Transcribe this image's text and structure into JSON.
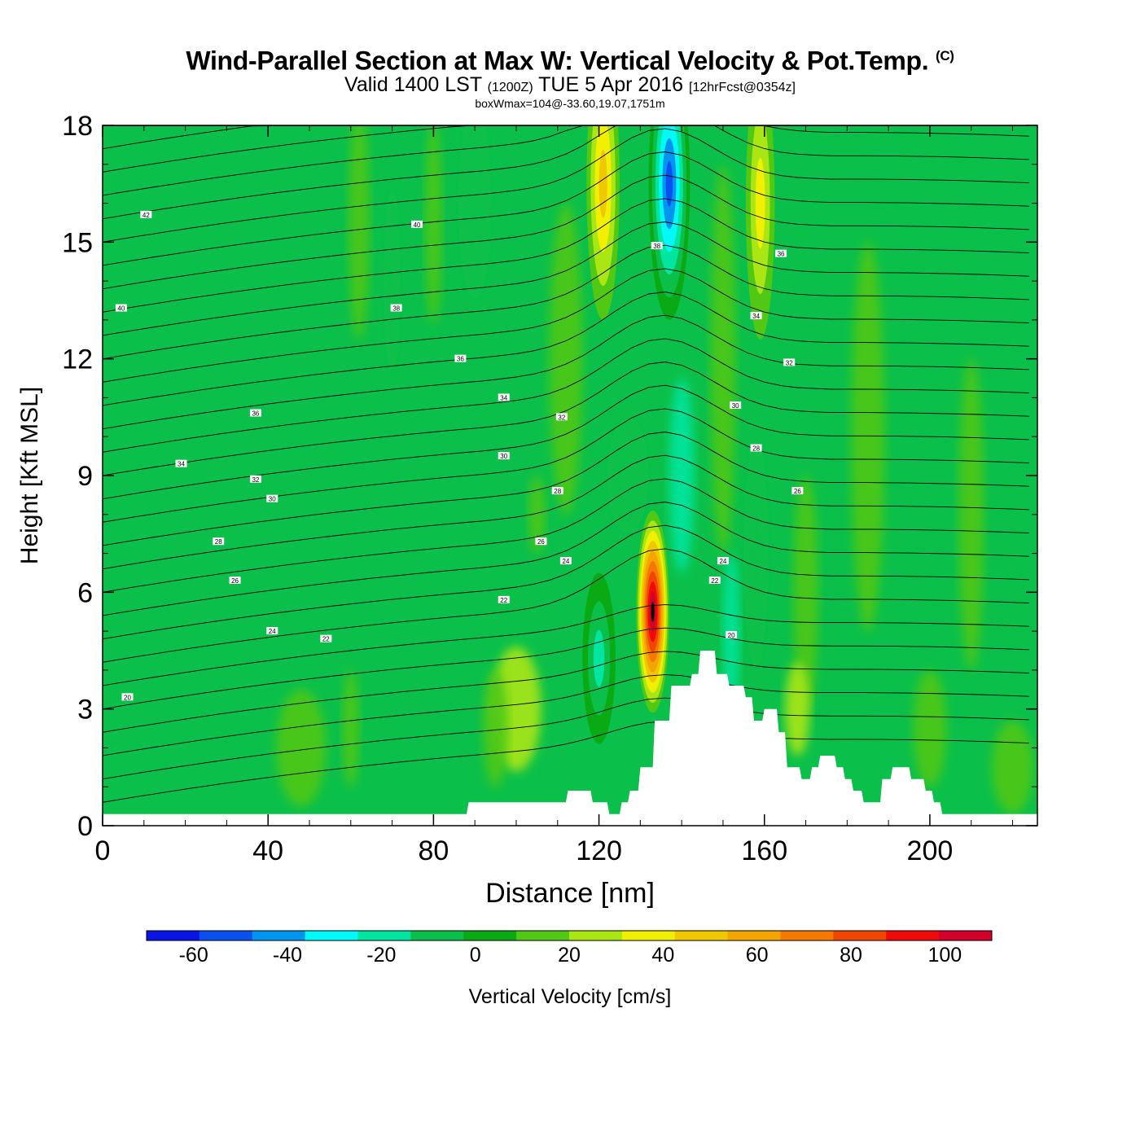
{
  "header": {
    "title": "Wind-Parallel Section at Max W: Vertical Velocity & Pot.Temp.",
    "copyright": "(C)",
    "valid_prefix": "Valid 1400 LST",
    "valid_utc": "(1200Z)",
    "valid_date": "TUE 5 Apr 2016",
    "forecast": "[12hrFcst@0354z]",
    "box_info": "boxWmax=104@-33.60,19.07,1751m"
  },
  "colors": {
    "background_field": "#0bc04a",
    "terrain": "#ffffff",
    "contour_line": "#000000"
  },
  "chart_data": {
    "type": "heatmap",
    "xlabel": "Distance [nm]",
    "ylabel": "Height [Kft MSL]",
    "xlim": [
      0,
      226
    ],
    "ylim": [
      0,
      18
    ],
    "x_ticks": [
      "0",
      "40",
      "80",
      "120",
      "160",
      "200"
    ],
    "y_ticks": [
      "0",
      "3",
      "6",
      "9",
      "12",
      "15",
      "18"
    ],
    "colorbar": {
      "label": "Vertical Velocity [cm/s]",
      "tick_labels": [
        "-60",
        "-40",
        "-20",
        "0",
        "20",
        "40",
        "60",
        "80",
        "100"
      ],
      "bins": [
        -70,
        -60,
        -50,
        -40,
        -30,
        -20,
        -10,
        0,
        10,
        20,
        30,
        40,
        50,
        60,
        70,
        80,
        90,
        100,
        110
      ],
      "colors": [
        "#0a14e6",
        "#0a50f0",
        "#0096f0",
        "#00fafa",
        "#00e6a0",
        "#0bc04a",
        "#0aaa14",
        "#50c814",
        "#aae614",
        "#f0f000",
        "#f0c800",
        "#f5a500",
        "#f57800",
        "#f04600",
        "#f00a0a",
        "#d2002a"
      ]
    },
    "theta_contour_labels": [
      {
        "label": "42",
        "x": 10.5,
        "y": 15.7
      },
      {
        "label": "40",
        "x": 4.5,
        "y": 13.3
      },
      {
        "label": "40",
        "x": 76,
        "y": 15.45
      },
      {
        "label": "38",
        "x": 71,
        "y": 13.3
      },
      {
        "label": "36",
        "x": 86.5,
        "y": 12.0
      },
      {
        "label": "36",
        "x": 37,
        "y": 10.6
      },
      {
        "label": "34",
        "x": 19,
        "y": 9.3
      },
      {
        "label": "34",
        "x": 97,
        "y": 11.0
      },
      {
        "label": "32",
        "x": 37,
        "y": 8.9
      },
      {
        "label": "32",
        "x": 111,
        "y": 10.5
      },
      {
        "label": "30",
        "x": 41,
        "y": 8.4
      },
      {
        "label": "30",
        "x": 97,
        "y": 9.5
      },
      {
        "label": "28",
        "x": 28,
        "y": 7.3
      },
      {
        "label": "28",
        "x": 110,
        "y": 8.6
      },
      {
        "label": "26",
        "x": 32,
        "y": 6.3
      },
      {
        "label": "26",
        "x": 106,
        "y": 7.3
      },
      {
        "label": "24",
        "x": 41,
        "y": 5.0
      },
      {
        "label": "24",
        "x": 112,
        "y": 6.8
      },
      {
        "label": "22",
        "x": 54,
        "y": 4.8
      },
      {
        "label": "22",
        "x": 97,
        "y": 5.8
      },
      {
        "label": "20",
        "x": 6,
        "y": 3.3
      },
      {
        "label": "38",
        "x": 134,
        "y": 14.9
      },
      {
        "label": "36",
        "x": 164,
        "y": 14.7
      },
      {
        "label": "34",
        "x": 158,
        "y": 13.1
      },
      {
        "label": "32",
        "x": 166,
        "y": 11.9
      },
      {
        "label": "30",
        "x": 153,
        "y": 10.8
      },
      {
        "label": "28",
        "x": 158,
        "y": 9.7
      },
      {
        "label": "26",
        "x": 168,
        "y": 8.6
      },
      {
        "label": "24",
        "x": 150,
        "y": 6.8
      },
      {
        "label": "22",
        "x": 148,
        "y": 6.3
      },
      {
        "label": "20",
        "x": 152,
        "y": 4.9
      }
    ],
    "w_features": [
      {
        "x": 133,
        "y": 5.5,
        "rx": 4,
        "ry": 2.6,
        "value": 104
      },
      {
        "x": 137,
        "y": 16.5,
        "rx": 5,
        "ry": 3.5,
        "value": -60
      },
      {
        "x": 120,
        "y": 4.3,
        "rx": 4,
        "ry": 2.2,
        "value": -30
      },
      {
        "x": 121,
        "y": 16.5,
        "rx": 4,
        "ry": 3.5,
        "value": 40
      },
      {
        "x": 159,
        "y": 16,
        "rx": 3.5,
        "ry": 3.5,
        "value": 30
      }
    ],
    "terrain_height": [
      {
        "x": 0,
        "h": 0.3
      },
      {
        "x": 88,
        "h": 0.3
      },
      {
        "x": 88.5,
        "h": 0.6
      },
      {
        "x": 112,
        "h": 0.6
      },
      {
        "x": 112.5,
        "h": 0.9
      },
      {
        "x": 118,
        "h": 0.9
      },
      {
        "x": 118.5,
        "h": 0.6
      },
      {
        "x": 122,
        "h": 0.6
      },
      {
        "x": 122.5,
        "h": 0.3
      },
      {
        "x": 125,
        "h": 0.3
      },
      {
        "x": 125.5,
        "h": 0.6
      },
      {
        "x": 127,
        "h": 0.6
      },
      {
        "x": 127.5,
        "h": 0.9
      },
      {
        "x": 129.5,
        "h": 0.9
      },
      {
        "x": 130,
        "h": 1.5
      },
      {
        "x": 133,
        "h": 1.5
      },
      {
        "x": 133.5,
        "h": 2.7
      },
      {
        "x": 137,
        "h": 2.7
      },
      {
        "x": 137.5,
        "h": 3.6
      },
      {
        "x": 142,
        "h": 3.6
      },
      {
        "x": 142.5,
        "h": 3.9
      },
      {
        "x": 144,
        "h": 3.9
      },
      {
        "x": 144.5,
        "h": 4.5
      },
      {
        "x": 148,
        "h": 4.5
      },
      {
        "x": 148.5,
        "h": 3.9
      },
      {
        "x": 151,
        "h": 3.9
      },
      {
        "x": 151.5,
        "h": 3.6
      },
      {
        "x": 155,
        "h": 3.6
      },
      {
        "x": 155.5,
        "h": 3.3
      },
      {
        "x": 157,
        "h": 3.3
      },
      {
        "x": 157.5,
        "h": 2.7
      },
      {
        "x": 159.5,
        "h": 2.7
      },
      {
        "x": 160,
        "h": 3.0
      },
      {
        "x": 163,
        "h": 3.0
      },
      {
        "x": 163.5,
        "h": 2.4
      },
      {
        "x": 165,
        "h": 2.4
      },
      {
        "x": 165.5,
        "h": 1.5
      },
      {
        "x": 168.5,
        "h": 1.5
      },
      {
        "x": 169,
        "h": 1.2
      },
      {
        "x": 171,
        "h": 1.2
      },
      {
        "x": 171.5,
        "h": 1.5
      },
      {
        "x": 173,
        "h": 1.5
      },
      {
        "x": 173.5,
        "h": 1.8
      },
      {
        "x": 177,
        "h": 1.8
      },
      {
        "x": 177.5,
        "h": 1.5
      },
      {
        "x": 179,
        "h": 1.5
      },
      {
        "x": 179.5,
        "h": 1.2
      },
      {
        "x": 181,
        "h": 1.2
      },
      {
        "x": 181.5,
        "h": 0.9
      },
      {
        "x": 183.5,
        "h": 0.9
      },
      {
        "x": 184,
        "h": 0.6
      },
      {
        "x": 188,
        "h": 0.6
      },
      {
        "x": 188.5,
        "h": 1.2
      },
      {
        "x": 190.5,
        "h": 1.2
      },
      {
        "x": 191,
        "h": 1.5
      },
      {
        "x": 195,
        "h": 1.5
      },
      {
        "x": 195.5,
        "h": 1.2
      },
      {
        "x": 198.5,
        "h": 1.2
      },
      {
        "x": 199,
        "h": 0.9
      },
      {
        "x": 200.5,
        "h": 0.9
      },
      {
        "x": 201,
        "h": 0.6
      },
      {
        "x": 202.5,
        "h": 0.6
      },
      {
        "x": 203,
        "h": 0.3
      },
      {
        "x": 226,
        "h": 0.3
      }
    ]
  }
}
